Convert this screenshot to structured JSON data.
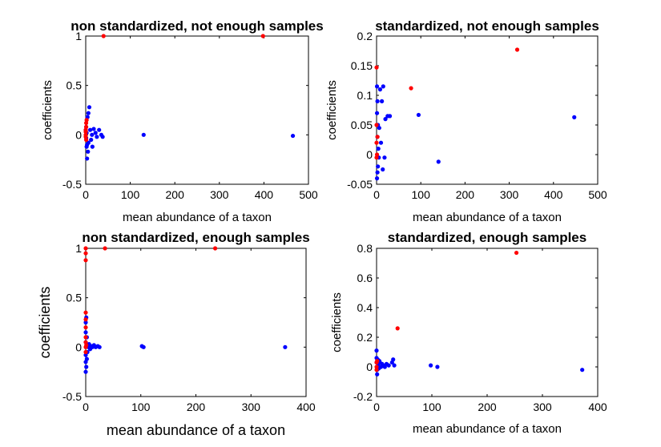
{
  "figure": {
    "series_colors": {
      "blue": "#0000ff",
      "red": "#ff0000"
    }
  },
  "chart_data": [
    {
      "type": "scatter",
      "title": "non standardized, not enough samples",
      "xlabel": "mean abundance of a taxon",
      "ylabel": "coefficients",
      "xlim": [
        0,
        500
      ],
      "ylim": [
        -0.5,
        1
      ],
      "xticks": [
        "0",
        "100",
        "200",
        "300",
        "400",
        "500"
      ],
      "yticks": [
        "-0.5",
        "0",
        "0.5",
        "1"
      ],
      "grid": false,
      "series": [
        {
          "color": "#0000ff",
          "points": [
            [
              0,
              0.05
            ],
            [
              1,
              -0.03
            ],
            [
              2,
              0.02
            ],
            [
              3,
              -0.1
            ],
            [
              4,
              0.18
            ],
            [
              5,
              -0.17
            ],
            [
              6,
              0.22
            ],
            [
              8,
              0.28
            ],
            [
              10,
              0.05
            ],
            [
              12,
              -0.05
            ],
            [
              15,
              -0.12
            ],
            [
              18,
              0.06
            ],
            [
              22,
              0.02
            ],
            [
              25,
              -0.02
            ],
            [
              30,
              0.05
            ],
            [
              35,
              0.0
            ],
            [
              38,
              -0.02
            ],
            [
              2,
              -0.12
            ],
            [
              3,
              -0.24
            ],
            [
              130,
              0.0
            ],
            [
              465,
              -0.01
            ],
            [
              1,
              0.08
            ],
            [
              6,
              -0.08
            ],
            [
              14,
              0.0
            ]
          ]
        },
        {
          "color": "#ff0000",
          "points": [
            [
              0,
              0.0
            ],
            [
              0,
              0.03
            ],
            [
              0,
              -0.02
            ],
            [
              1,
              0.08
            ],
            [
              1,
              0.12
            ],
            [
              2,
              0.15
            ],
            [
              1,
              -0.05
            ],
            [
              0,
              0.05
            ],
            [
              40,
              1.0
            ],
            [
              398,
              1.0
            ]
          ]
        }
      ]
    },
    {
      "type": "scatter",
      "title": "standardized, not enough samples",
      "xlabel": "mean abundance of a taxon",
      "ylabel": "coefficients",
      "xlim": [
        0,
        500
      ],
      "ylim": [
        -0.05,
        0.2
      ],
      "xticks": [
        "0",
        "100",
        "200",
        "300",
        "400",
        "500"
      ],
      "yticks": [
        "-0.05",
        "0",
        "0.05",
        "0.1",
        "0.15",
        "0.2"
      ],
      "grid": false,
      "series": [
        {
          "color": "#0000ff",
          "points": [
            [
              1,
              0.115
            ],
            [
              2,
              0.09
            ],
            [
              1,
              0.07
            ],
            [
              3,
              0.05
            ],
            [
              2,
              0.03
            ],
            [
              4,
              0.01
            ],
            [
              5,
              -0.005
            ],
            [
              3,
              -0.02
            ],
            [
              1,
              -0.04
            ],
            [
              2,
              -0.03
            ],
            [
              8,
              0.11
            ],
            [
              12,
              0.09
            ],
            [
              15,
              0.115
            ],
            [
              20,
              0.06
            ],
            [
              25,
              0.065
            ],
            [
              30,
              0.065
            ],
            [
              18,
              -0.005
            ],
            [
              14,
              -0.025
            ],
            [
              95,
              0.067
            ],
            [
              140,
              -0.012
            ],
            [
              447,
              0.063
            ],
            [
              6,
              0.045
            ],
            [
              10,
              0.02
            ]
          ]
        },
        {
          "color": "#ff0000",
          "points": [
            [
              0,
              0.147
            ],
            [
              0,
              0.05
            ],
            [
              0,
              0.02
            ],
            [
              1,
              0.0
            ],
            [
              0,
              -0.005
            ],
            [
              2,
              0.03
            ],
            [
              78,
              0.112
            ],
            [
              318,
              0.177
            ]
          ]
        }
      ]
    },
    {
      "type": "scatter",
      "title": "non standardized, enough samples",
      "xlabel": "mean abundance of a taxon",
      "ylabel": "coefficients",
      "xlim": [
        0,
        400
      ],
      "ylim": [
        -0.5,
        1
      ],
      "xticks": [
        "0",
        "100",
        "200",
        "300",
        "400"
      ],
      "yticks": [
        "-0.5",
        "0",
        "0.5",
        "1"
      ],
      "grid": false,
      "series": [
        {
          "color": "#0000ff",
          "points": [
            [
              0,
              -0.25
            ],
            [
              0,
              -0.15
            ],
            [
              0,
              -0.08
            ],
            [
              0,
              0.05
            ],
            [
              0,
              0.15
            ],
            [
              0,
              0.25
            ],
            [
              1,
              -0.2
            ],
            [
              2,
              0.1
            ],
            [
              3,
              -0.05
            ],
            [
              4,
              0.02
            ],
            [
              5,
              0.0
            ],
            [
              6,
              0.03
            ],
            [
              8,
              -0.02
            ],
            [
              10,
              0.01
            ],
            [
              12,
              0.0
            ],
            [
              15,
              0.02
            ],
            [
              18,
              0.0
            ],
            [
              22,
              0.01
            ],
            [
              25,
              0.0
            ],
            [
              102,
              0.01
            ],
            [
              105,
              0.0
            ],
            [
              362,
              0.0
            ],
            [
              1,
              0.3
            ],
            [
              2,
              -0.12
            ]
          ]
        },
        {
          "color": "#ff0000",
          "points": [
            [
              0,
              1.0
            ],
            [
              0,
              0.95
            ],
            [
              0,
              0.88
            ],
            [
              0,
              0.35
            ],
            [
              0,
              0.28
            ],
            [
              0,
              0.2
            ],
            [
              0,
              0.1
            ],
            [
              0,
              0.05
            ],
            [
              0,
              0.0
            ],
            [
              0,
              -0.05
            ],
            [
              1,
              0.02
            ],
            [
              35,
              1.0
            ],
            [
              235,
              1.0
            ]
          ]
        }
      ]
    },
    {
      "type": "scatter",
      "title": "standardized, enough samples",
      "xlabel": "mean abundance of a taxon",
      "ylabel": "coefficients",
      "xlim": [
        0,
        400
      ],
      "ylim": [
        -0.2,
        0.8
      ],
      "xticks": [
        "0",
        "100",
        "200",
        "300",
        "400"
      ],
      "yticks": [
        "-0.2",
        "0",
        "0.2",
        "0.4",
        "0.6",
        "0.8"
      ],
      "grid": false,
      "series": [
        {
          "color": "#0000ff",
          "points": [
            [
              0,
              0.11
            ],
            [
              0,
              0.06
            ],
            [
              0,
              0.03
            ],
            [
              1,
              -0.02
            ],
            [
              1,
              -0.05
            ],
            [
              2,
              0.0
            ],
            [
              3,
              0.02
            ],
            [
              4,
              -0.01
            ],
            [
              5,
              0.04
            ],
            [
              6,
              0.03
            ],
            [
              8,
              0.0
            ],
            [
              10,
              0.02
            ],
            [
              12,
              0.01
            ],
            [
              15,
              0.0
            ],
            [
              18,
              0.02
            ],
            [
              22,
              0.01
            ],
            [
              28,
              0.03
            ],
            [
              30,
              0.05
            ],
            [
              32,
              0.01
            ],
            [
              98,
              0.01
            ],
            [
              110,
              0.0
            ],
            [
              372,
              -0.02
            ],
            [
              2,
              0.05
            ]
          ]
        },
        {
          "color": "#ff0000",
          "points": [
            [
              0,
              0.03
            ],
            [
              0,
              0.0
            ],
            [
              0,
              -0.02
            ],
            [
              1,
              0.04
            ],
            [
              38,
              0.26
            ],
            [
              253,
              0.77
            ]
          ]
        }
      ]
    }
  ]
}
